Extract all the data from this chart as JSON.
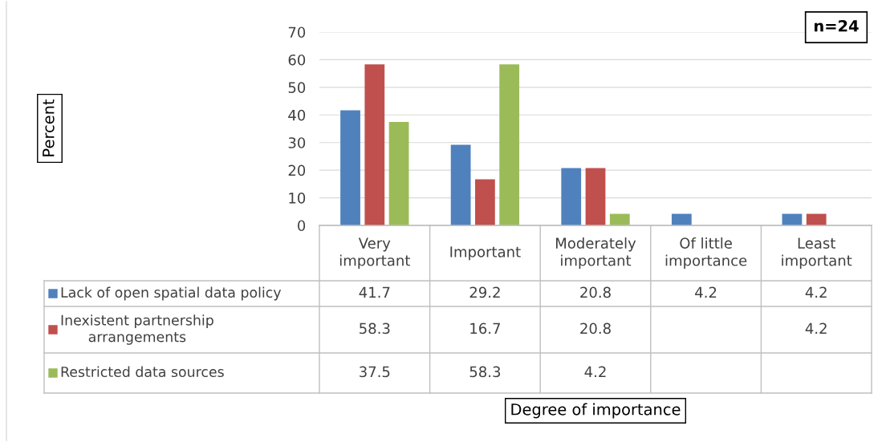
{
  "chart_data": {
    "type": "bar",
    "categories": [
      "Very important",
      "Important",
      "Moderately important",
      "Of little importance",
      "Least important"
    ],
    "series": [
      {
        "name": "Lack of open spatial data policy",
        "color": "#4f81bd",
        "values": [
          41.7,
          29.2,
          20.8,
          4.2,
          4.2
        ]
      },
      {
        "name": "Inexistent partnership arrangements",
        "color": "#c0504d",
        "values": [
          58.3,
          16.7,
          20.8,
          null,
          4.2
        ]
      },
      {
        "name": "Restricted data sources",
        "color": "#9bbb59",
        "values": [
          37.5,
          58.3,
          4.2,
          null,
          null
        ]
      }
    ],
    "ylim": [
      0,
      70
    ],
    "yticks": [
      0,
      10,
      20,
      30,
      40,
      50,
      60,
      70
    ],
    "grid": "y",
    "legend": "bottom",
    "data_labels": true,
    "annotations": [
      "n=24",
      "Percent",
      "Degree of importance"
    ]
  }
}
